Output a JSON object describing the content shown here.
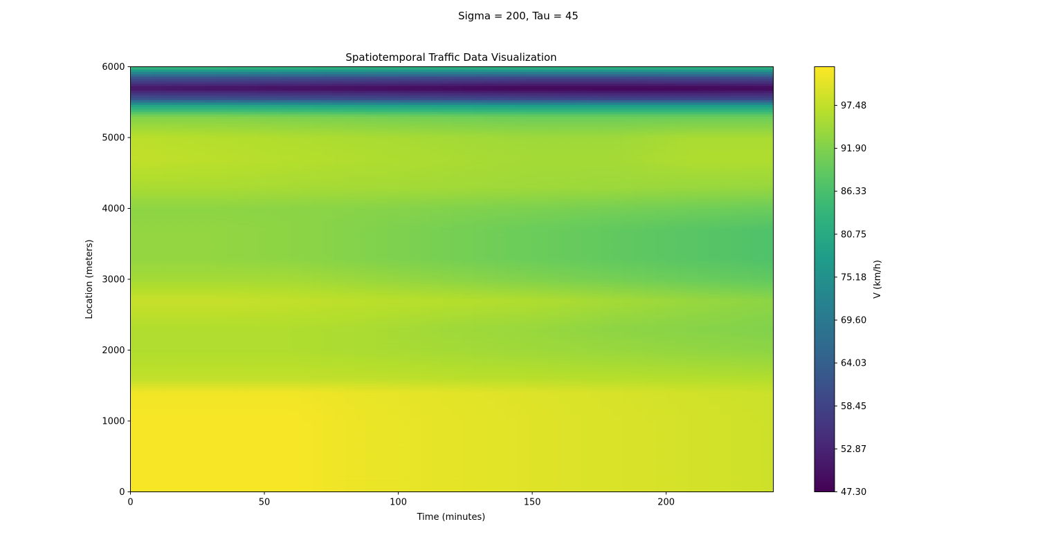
{
  "figure": {
    "suptitle": "Sigma = 200, Tau = 45"
  },
  "chart_data": {
    "type": "heatmap",
    "title": "Spatiotemporal Traffic Data Visualization",
    "xlabel": "Time (minutes)",
    "ylabel": "Location (meters)",
    "xlim": [
      0,
      240
    ],
    "ylim": [
      0,
      6000
    ],
    "x_ticks": [
      0,
      50,
      100,
      150,
      200
    ],
    "y_ticks": [
      0,
      1000,
      2000,
      3000,
      4000,
      5000,
      6000
    ],
    "colormap": "viridis",
    "colorbar": {
      "label": "V (km/h)",
      "vmin": 47.3,
      "vmax": 102.5,
      "ticks": [
        "47.30",
        "52.87",
        "58.45",
        "64.03",
        "69.60",
        "75.18",
        "80.75",
        "86.33",
        "91.90",
        "97.48"
      ]
    },
    "grid": false,
    "legend": "none",
    "x": [
      0,
      30,
      60,
      90,
      120,
      150,
      180,
      210,
      240
    ],
    "y": [
      0,
      1000,
      1400,
      1600,
      2000,
      2300,
      2700,
      3000,
      3300,
      3700,
      4000,
      4300,
      4700,
      5000,
      5300,
      5450,
      5550,
      5700,
      5850,
      6000
    ],
    "z": [
      [
        102.0,
        102.0,
        102.0,
        101.0,
        100.5,
        100.0,
        99.5,
        99.0,
        98.5
      ],
      [
        102.0,
        102.0,
        102.0,
        101.0,
        100.5,
        100.0,
        99.5,
        99.0,
        98.5
      ],
      [
        101.5,
        101.5,
        101.5,
        100.8,
        100.3,
        99.8,
        99.3,
        98.8,
        98.3
      ],
      [
        97.5,
        97.5,
        97.5,
        97.3,
        97.0,
        96.8,
        96.6,
        96.4,
        96.2
      ],
      [
        96.0,
        96.0,
        96.0,
        95.5,
        95.0,
        94.5,
        94.0,
        93.5,
        93.0
      ],
      [
        96.0,
        96.0,
        96.0,
        95.5,
        94.5,
        94.0,
        93.0,
        92.5,
        92.0
      ],
      [
        98.0,
        98.0,
        97.5,
        97.0,
        96.5,
        96.0,
        95.0,
        94.0,
        93.0
      ],
      [
        95.0,
        95.0,
        95.0,
        94.0,
        93.0,
        92.0,
        91.0,
        90.0,
        89.0
      ],
      [
        93.5,
        93.5,
        93.0,
        92.0,
        91.0,
        90.0,
        89.0,
        88.0,
        87.0
      ],
      [
        93.5,
        93.5,
        93.0,
        92.0,
        91.0,
        90.0,
        89.0,
        88.0,
        87.0
      ],
      [
        93.0,
        93.0,
        92.8,
        92.5,
        92.0,
        91.5,
        91.0,
        90.5,
        90.0
      ],
      [
        95.5,
        95.5,
        95.2,
        95.0,
        94.8,
        94.5,
        94.3,
        94.0,
        93.8
      ],
      [
        97.5,
        97.0,
        96.5,
        96.0,
        95.5,
        95.0,
        95.0,
        96.0,
        96.0
      ],
      [
        97.0,
        96.5,
        96.0,
        95.5,
        95.0,
        94.5,
        94.5,
        95.5,
        95.5
      ],
      [
        92.0,
        92.0,
        91.5,
        91.0,
        90.5,
        90.0,
        90.0,
        90.0,
        90.0
      ],
      [
        80.0,
        80.0,
        79.5,
        79.0,
        78.5,
        78.0,
        78.0,
        78.0,
        78.0
      ],
      [
        62.0,
        61.5,
        61.0,
        60.5,
        60.0,
        59.5,
        59.0,
        59.0,
        59.0
      ],
      [
        50.0,
        49.5,
        49.0,
        48.5,
        48.0,
        47.5,
        47.5,
        47.5,
        48.0
      ],
      [
        62.0,
        61.5,
        61.0,
        60.5,
        60.0,
        59.5,
        59.5,
        60.0,
        60.5
      ],
      [
        85.0,
        85.0,
        84.5,
        84.0,
        84.0,
        84.0,
        84.0,
        84.0,
        84.0
      ]
    ]
  }
}
